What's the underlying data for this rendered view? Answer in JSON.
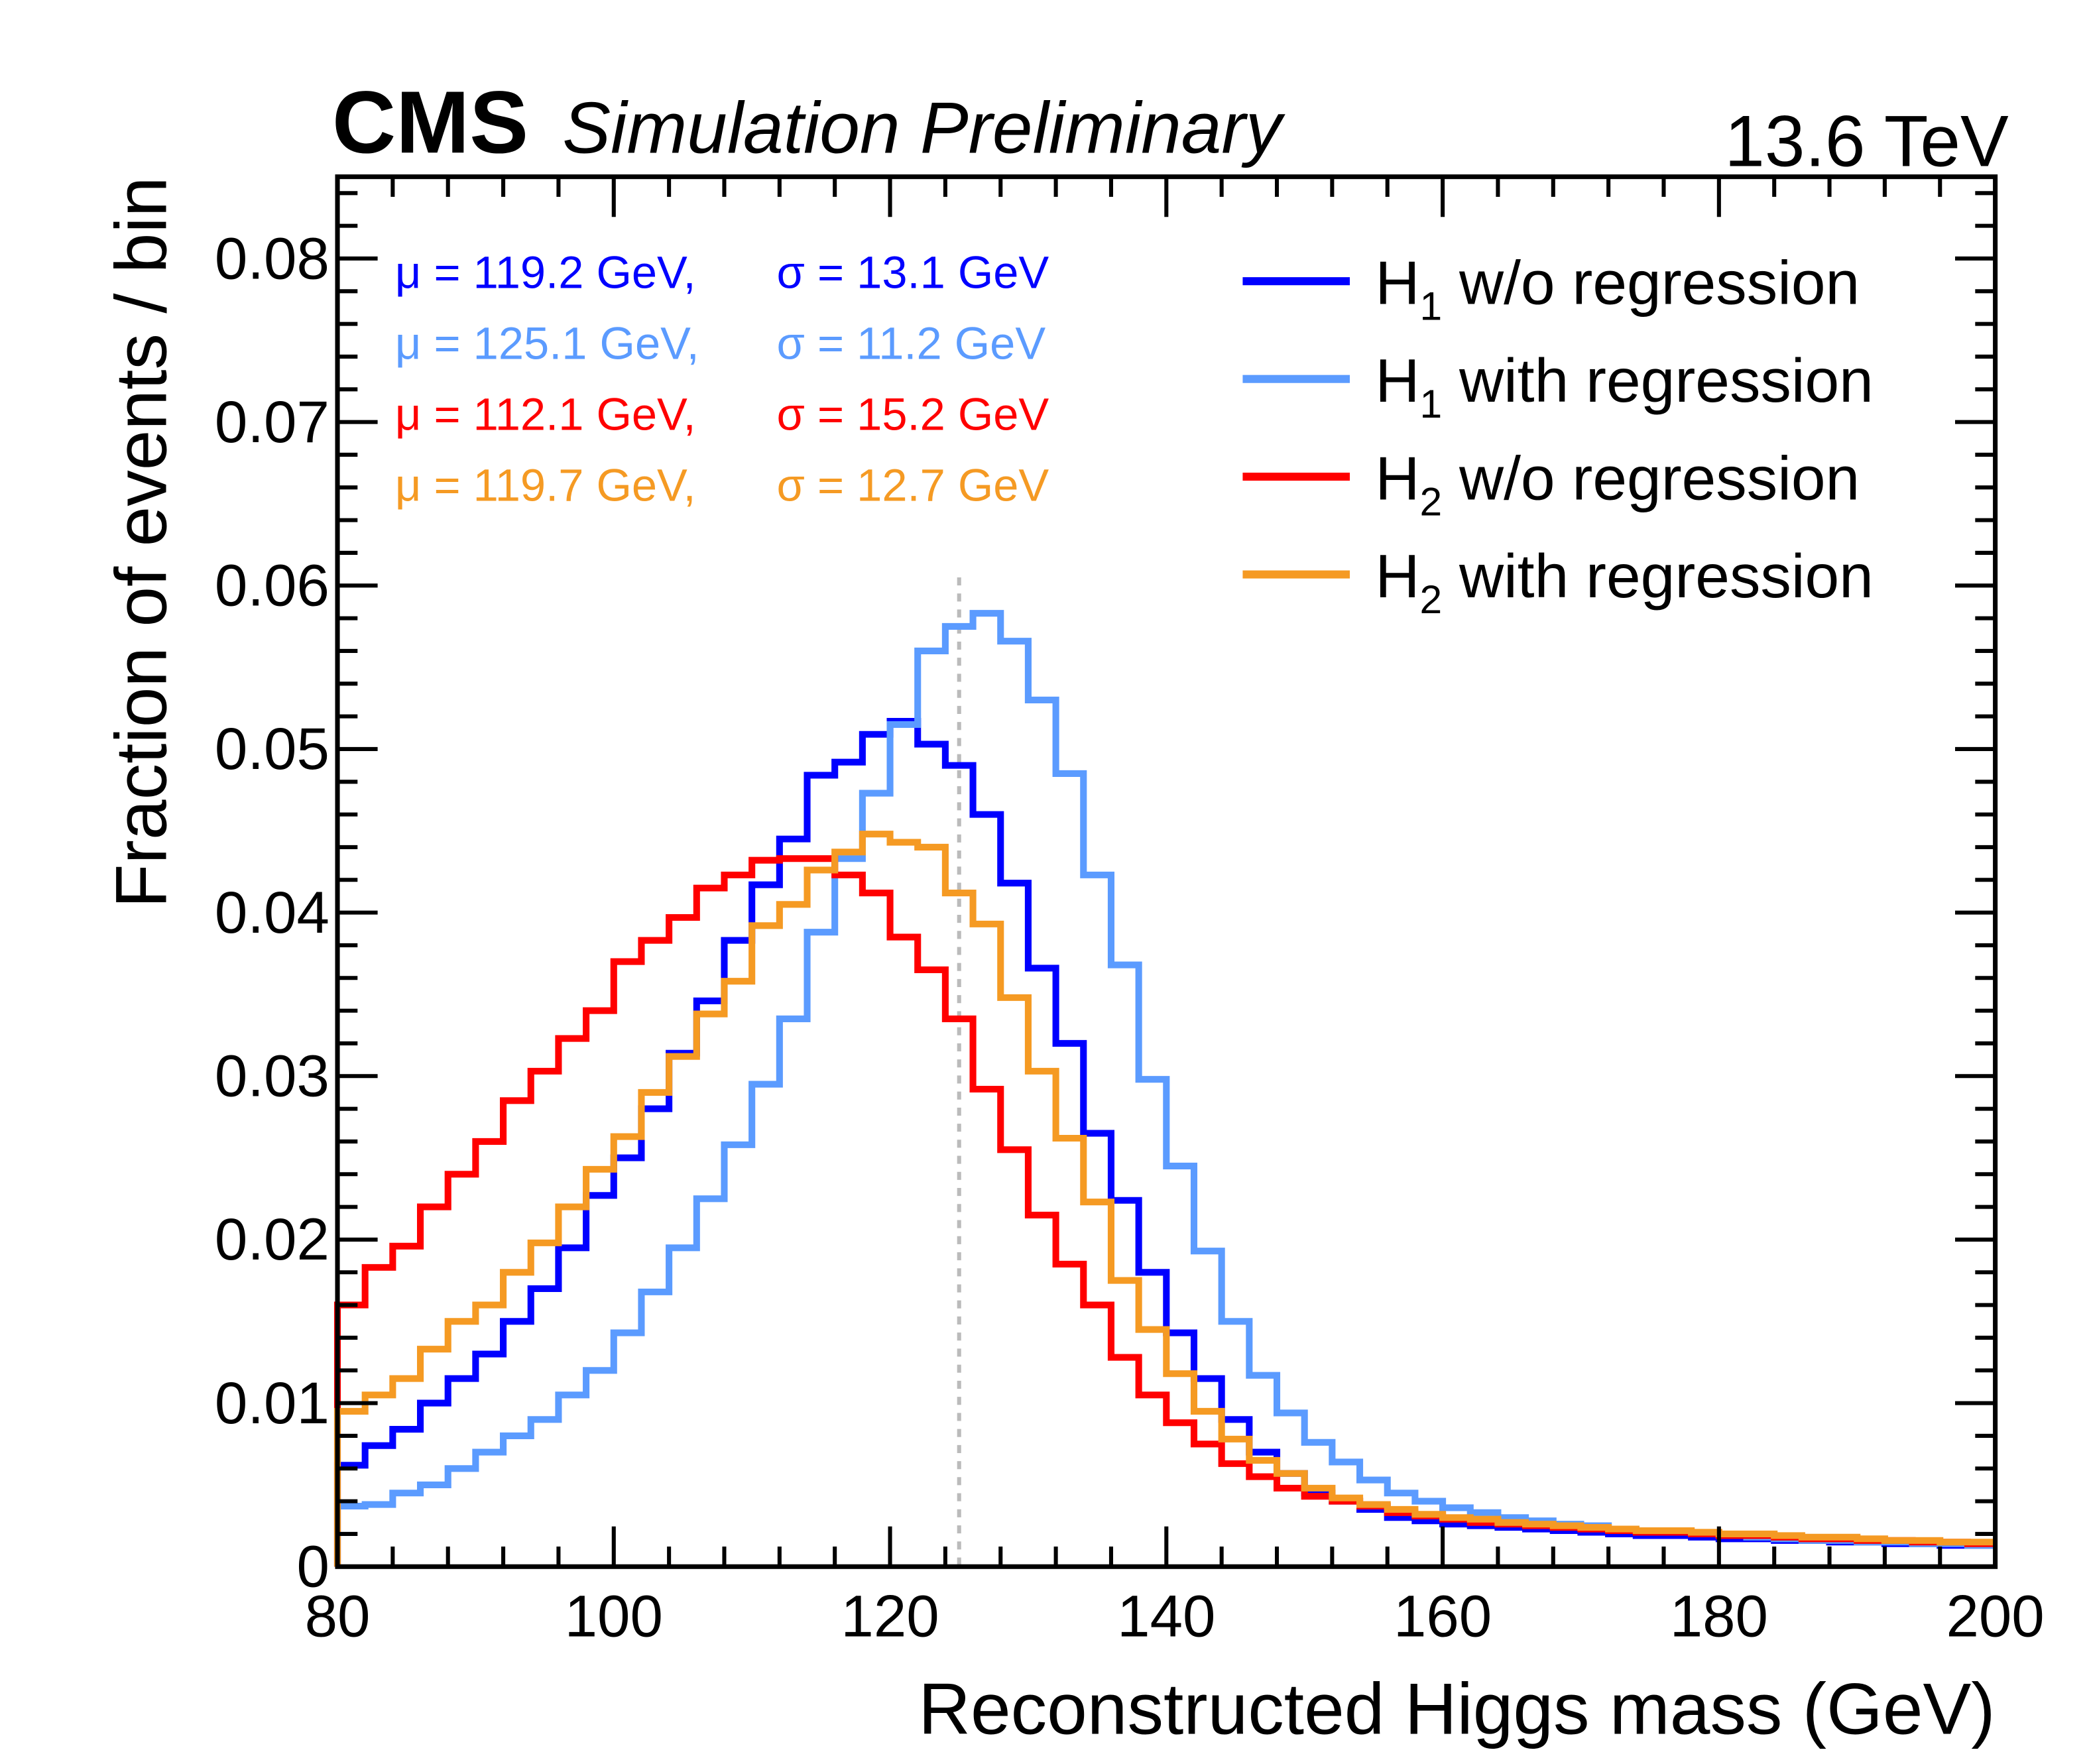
{
  "chart_data": {
    "type": "line",
    "style": "step-histogram",
    "header": {
      "experiment": "CMS",
      "status": "Simulation Preliminary",
      "energy": "13.6 TeV"
    },
    "xlabel": "Reconstructed Higgs mass (GeV)",
    "ylabel": "Fraction of events / bin",
    "xlim": [
      80,
      200
    ],
    "ylim": [
      0,
      0.085
    ],
    "xticks": [
      "80",
      "100",
      "120",
      "140",
      "160",
      "180",
      "200"
    ],
    "yticks": [
      "0",
      "0.01",
      "0.02",
      "0.03",
      "0.04",
      "0.05",
      "0.06",
      "0.07",
      "0.08"
    ],
    "bin_width": 2,
    "reference_line": {
      "x": 125,
      "style": "dashed",
      "color": "#bbbbbb"
    },
    "legend_position": "top-right",
    "series": [
      {
        "name": "H1 w/o regression",
        "label_main": "H",
        "label_sub": "1",
        "label_rest": " w/o regression",
        "color": "#0000ff",
        "stats": {
          "mu": "μ = 119.2 GeV,",
          "sigma": "σ = 13.1 GeV"
        },
        "values": [
          0.0062,
          0.0074,
          0.0084,
          0.01,
          0.0115,
          0.013,
          0.015,
          0.017,
          0.0195,
          0.0227,
          0.025,
          0.028,
          0.0314,
          0.0346,
          0.0383,
          0.0417,
          0.0445,
          0.0484,
          0.0492,
          0.0509,
          0.0517,
          0.0503,
          0.049,
          0.046,
          0.0418,
          0.0366,
          0.032,
          0.0265,
          0.0224,
          0.018,
          0.0143,
          0.0115,
          0.009,
          0.007,
          0.0057,
          0.0045,
          0.004,
          0.0035,
          0.003,
          0.0028,
          0.0026,
          0.0025,
          0.0024,
          0.0023,
          0.0022,
          0.0021,
          0.002,
          0.0019,
          0.0019,
          0.0018,
          0.0017,
          0.0017,
          0.0016,
          0.0016,
          0.0015,
          0.0015,
          0.0014,
          0.0014,
          0.0013,
          0.0013
        ]
      },
      {
        "name": "H1 with regression",
        "label_main": "H",
        "label_sub": "1",
        "label_rest": " with regression",
        "color": "#5b9bff",
        "stats": {
          "mu": "μ = 125.1 GeV,",
          "sigma": "σ = 11.2 GeV"
        },
        "values": [
          0.0037,
          0.0038,
          0.0045,
          0.005,
          0.006,
          0.007,
          0.008,
          0.009,
          0.0105,
          0.012,
          0.0143,
          0.0168,
          0.0195,
          0.0225,
          0.0258,
          0.0295,
          0.0335,
          0.0388,
          0.0433,
          0.0473,
          0.0515,
          0.056,
          0.0575,
          0.0583,
          0.0566,
          0.053,
          0.0485,
          0.0423,
          0.0368,
          0.0298,
          0.0245,
          0.0193,
          0.015,
          0.0117,
          0.0094,
          0.0076,
          0.0064,
          0.0053,
          0.0045,
          0.004,
          0.0036,
          0.0033,
          0.003,
          0.0028,
          0.0026,
          0.0025,
          0.0023,
          0.0022,
          0.0021,
          0.002,
          0.0019,
          0.0018,
          0.0017,
          0.0016,
          0.0016,
          0.0015,
          0.0015,
          0.0014,
          0.0014,
          0.0013
        ]
      },
      {
        "name": "H2 w/o regression",
        "label_main": "H",
        "label_sub": "2",
        "label_rest": " w/o regression",
        "color": "#ff0000",
        "stats": {
          "mu": "μ = 112.1 GeV,",
          "sigma": "σ = 15.2 GeV"
        },
        "values": [
          0.016,
          0.0183,
          0.0196,
          0.022,
          0.024,
          0.026,
          0.0285,
          0.0303,
          0.0323,
          0.034,
          0.037,
          0.0383,
          0.0397,
          0.0415,
          0.0423,
          0.0432,
          0.0433,
          0.0433,
          0.0423,
          0.0412,
          0.0385,
          0.0365,
          0.0335,
          0.0292,
          0.0255,
          0.0215,
          0.0185,
          0.016,
          0.0128,
          0.0105,
          0.0088,
          0.0075,
          0.0063,
          0.0055,
          0.0048,
          0.0043,
          0.004,
          0.0037,
          0.0033,
          0.0031,
          0.0029,
          0.0027,
          0.0026,
          0.0025,
          0.0024,
          0.0023,
          0.0022,
          0.0021,
          0.0021,
          0.002,
          0.0019,
          0.0019,
          0.0018,
          0.0017,
          0.0017,
          0.0016,
          0.0016,
          0.0015,
          0.0015,
          0.0014
        ]
      },
      {
        "name": "H2 with regression",
        "label_main": "H",
        "label_sub": "2",
        "label_rest": " with regression",
        "color": "#f59a23",
        "stats": {
          "mu": "μ = 119.7 GeV,",
          "sigma": "σ = 12.7 GeV"
        },
        "values": [
          0.0095,
          0.0105,
          0.0115,
          0.0133,
          0.015,
          0.016,
          0.018,
          0.0198,
          0.022,
          0.0243,
          0.0263,
          0.029,
          0.0312,
          0.0338,
          0.0358,
          0.0392,
          0.0405,
          0.0426,
          0.0437,
          0.0448,
          0.0443,
          0.044,
          0.0412,
          0.0393,
          0.0348,
          0.0303,
          0.0262,
          0.0223,
          0.0175,
          0.0145,
          0.0118,
          0.0095,
          0.0078,
          0.0065,
          0.0057,
          0.0048,
          0.0042,
          0.0038,
          0.0035,
          0.0032,
          0.003,
          0.0029,
          0.0027,
          0.0026,
          0.0025,
          0.0024,
          0.0023,
          0.0022,
          0.0022,
          0.0021,
          0.002,
          0.002,
          0.0019,
          0.0018,
          0.0018,
          0.0017,
          0.0016,
          0.0016,
          0.0015,
          0.0015
        ]
      }
    ]
  }
}
